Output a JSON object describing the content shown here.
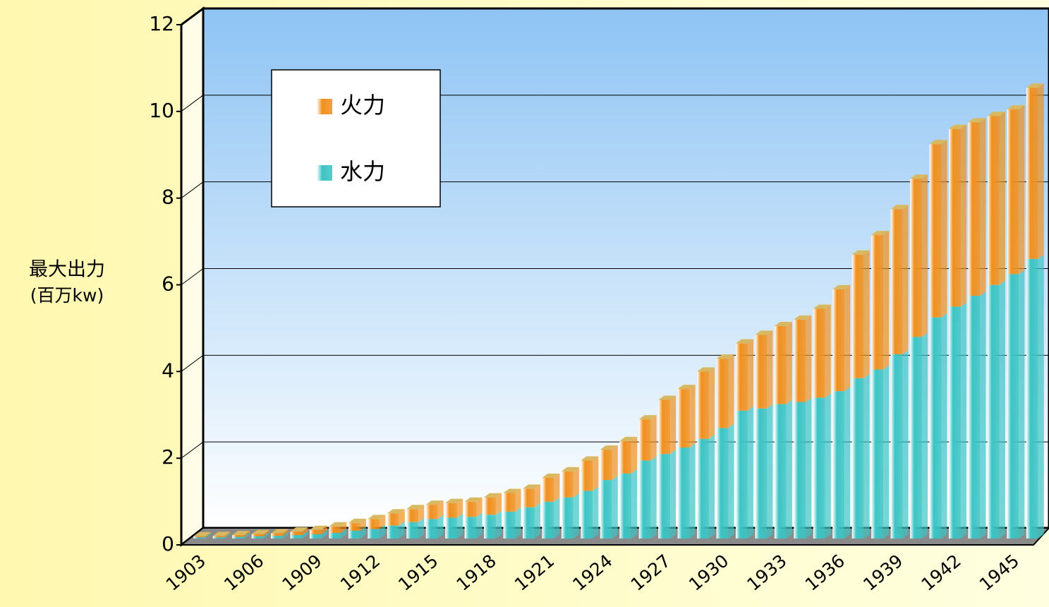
{
  "chart_data": {
    "type": "bar",
    "stacked": true,
    "y_label": [
      "最大出力",
      "(百万kw)"
    ],
    "categories": [
      "1903",
      null,
      null,
      "1906",
      null,
      null,
      "1909",
      null,
      null,
      "1912",
      null,
      null,
      "1915",
      null,
      null,
      "1918",
      null,
      null,
      "1921",
      null,
      null,
      "1924",
      null,
      null,
      "1927",
      null,
      null,
      "1930",
      null,
      null,
      "1933",
      null,
      null,
      "1936",
      null,
      null,
      "1939",
      null,
      null,
      "1942",
      null,
      null,
      "1945",
      null
    ],
    "series": [
      {
        "name": "水力",
        "color": "#3cc4c4",
        "values": [
          0.03,
          0.03,
          0.04,
          0.05,
          0.06,
          0.08,
          0.1,
          0.13,
          0.18,
          0.22,
          0.3,
          0.38,
          0.45,
          0.48,
          0.5,
          0.55,
          0.62,
          0.72,
          0.85,
          0.95,
          1.1,
          1.35,
          1.5,
          1.8,
          1.95,
          2.1,
          2.3,
          2.55,
          2.95,
          3.0,
          3.1,
          3.15,
          3.25,
          3.4,
          3.7,
          3.9,
          4.25,
          4.65,
          5.1,
          5.35,
          5.6,
          5.85,
          6.1,
          6.45
        ]
      },
      {
        "name": "火力",
        "color": "#f0901e",
        "values": [
          0.02,
          0.03,
          0.04,
          0.05,
          0.06,
          0.08,
          0.1,
          0.15,
          0.18,
          0.23,
          0.28,
          0.3,
          0.33,
          0.34,
          0.35,
          0.4,
          0.43,
          0.43,
          0.55,
          0.6,
          0.7,
          0.7,
          0.75,
          0.95,
          1.25,
          1.35,
          1.55,
          1.6,
          1.55,
          1.7,
          1.8,
          1.9,
          2.05,
          2.35,
          2.85,
          3.1,
          3.35,
          3.65,
          4.0,
          4.1,
          4.0,
          3.9,
          3.8,
          3.95
        ]
      }
    ],
    "ylim": [
      0,
      12
    ],
    "yticks": [
      0,
      2,
      4,
      6,
      8,
      10,
      12
    ],
    "grid": true,
    "legend": "upper left"
  }
}
